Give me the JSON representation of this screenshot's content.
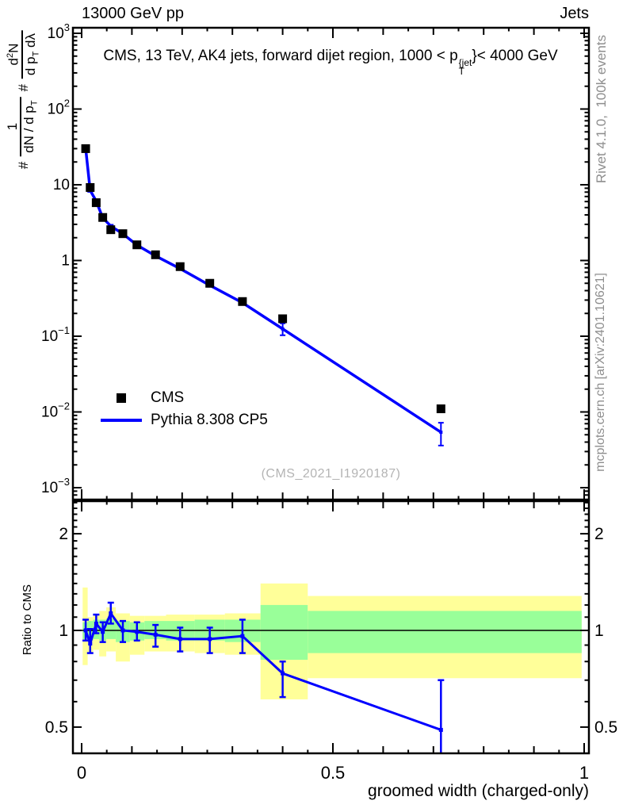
{
  "header": {
    "left": "13000 GeV pp",
    "right": "Jets"
  },
  "title": {
    "prefix": "CMS, 13 TeV, AK4 jets, forward dijet region, 1000 < p",
    "sup": "{jet",
    "sub": "T",
    "suffix": "}< 4000 GeV"
  },
  "ylabel": {
    "hash1": "#",
    "frac1_num": "1",
    "frac1_den": "dN / d p",
    "frac1_den_sub": "T",
    "hash2": "#",
    "frac2_num_d": "d",
    "frac2_num_sup": "2",
    "frac2_num_N": "N",
    "frac2_den": "d p",
    "frac2_den_sub": "T",
    "frac2_den_post": " dλ"
  },
  "legend": {
    "items": [
      {
        "label": "CMS"
      },
      {
        "label": "Pythia 8.308 CP5"
      }
    ]
  },
  "watermark": "(CMS_2021_I1920187)",
  "side_notes": {
    "top": "Rivet 4.1.0,  100k events",
    "bottom": "mcplots.cern.ch [arXiv:2401.10621]"
  },
  "ratio_label": "Ratio to CMS",
  "xlabel": "groomed width (charged-only)",
  "colors": {
    "mc_line": "#0000ff",
    "data_marker": "#000000",
    "band_outer": "#ffff99",
    "band_inner": "#99ff99",
    "note_gray": "#8e8e8e",
    "watermark_gray": "#b4b4b4",
    "frame": "#000000"
  },
  "chart_data": [
    {
      "type": "line",
      "title": "CMS, 13 TeV, AK4 jets, forward dijet region, 1000 < pT^{jet} < 4000 GeV",
      "xlabel": "groomed width (charged-only)",
      "ylabel": "# 1/(dN/dpT) d^2N/(dpT dlambda)",
      "yscale": "log",
      "xlim": [
        -0.017,
        1.0
      ],
      "ylim": [
        0.0007,
        1170
      ],
      "xticks": [
        0,
        0.5,
        1
      ],
      "xtick_labels": [
        "0",
        "0.5",
        "1"
      ],
      "yticks": [
        0.001,
        0.01,
        0.1,
        1,
        10,
        100,
        1000
      ],
      "legend_position": "center-left",
      "grid": false,
      "x": [
        0.008,
        0.017,
        0.029,
        0.042,
        0.058,
        0.082,
        0.11,
        0.147,
        0.196,
        0.255,
        0.32,
        0.4,
        0.715
      ],
      "series": [
        {
          "name": "CMS",
          "style": "squares",
          "color": "#000000",
          "values": [
            30,
            9.2,
            5.8,
            3.7,
            2.55,
            2.26,
            1.61,
            1.19,
            0.83,
            0.5,
            0.287,
            0.17,
            0.011
          ]
        },
        {
          "name": "Pythia 8.308 CP5",
          "style": "line",
          "color": "#0000ff",
          "values": [
            30.3,
            8.4,
            6.1,
            3.65,
            2.85,
            2.25,
            1.6,
            1.15,
            0.78,
            0.47,
            0.277,
            0.125,
            0.0054
          ],
          "err_lo": [
            29.1,
            8.06,
            5.86,
            3.5,
            2.74,
            2.16,
            1.54,
            1.1,
            0.75,
            0.45,
            0.266,
            0.103,
            0.0036
          ],
          "err_hi": [
            31.5,
            8.74,
            6.34,
            3.8,
            2.96,
            2.34,
            1.66,
            1.2,
            0.81,
            0.49,
            0.288,
            0.148,
            0.0072
          ]
        }
      ]
    },
    {
      "type": "ratio",
      "ylabel": "Ratio to CMS",
      "yscale": "log",
      "ylim": [
        0.414,
        2.53
      ],
      "yticks": [
        0.5,
        1,
        2
      ],
      "ytick_labels": [
        "0.5",
        "1",
        "2"
      ],
      "reference": 1,
      "x": [
        0.008,
        0.017,
        0.029,
        0.042,
        0.058,
        0.082,
        0.11,
        0.147,
        0.196,
        0.255,
        0.32,
        0.4,
        0.715
      ],
      "ratio": [
        1.0,
        0.91,
        1.05,
        0.99,
        1.13,
        1.0,
        0.99,
        0.97,
        0.94,
        0.94,
        0.96,
        0.735,
        0.49
      ],
      "err_lo": [
        0.93,
        0.85,
        0.98,
        0.92,
        1.05,
        0.92,
        0.93,
        0.89,
        0.86,
        0.85,
        0.85,
        0.62,
        0.4
      ],
      "err_hi": [
        1.08,
        1.01,
        1.12,
        1.06,
        1.22,
        1.07,
        1.06,
        1.04,
        1.02,
        1.02,
        1.08,
        0.8,
        0.7
      ],
      "bands": {
        "edges": [
          0.002,
          0.012,
          0.023,
          0.035,
          0.049,
          0.068,
          0.096,
          0.125,
          0.168,
          0.225,
          0.285,
          0.356,
          0.45,
          0.995
        ],
        "outer_lo": [
          0.78,
          0.85,
          0.87,
          0.83,
          0.86,
          0.8,
          0.84,
          0.86,
          0.86,
          0.85,
          0.84,
          0.61,
          0.71
        ],
        "outer_hi": [
          1.36,
          1.1,
          1.12,
          1.15,
          1.18,
          1.13,
          1.11,
          1.11,
          1.12,
          1.12,
          1.13,
          1.4,
          1.28
        ],
        "inner_lo": [
          0.94,
          0.93,
          0.94,
          0.93,
          0.94,
          0.92,
          0.93,
          0.94,
          0.93,
          0.93,
          0.92,
          0.81,
          0.85
        ],
        "inner_hi": [
          1.06,
          1.07,
          1.08,
          1.08,
          1.09,
          1.07,
          1.06,
          1.07,
          1.07,
          1.08,
          1.08,
          1.2,
          1.15
        ]
      }
    }
  ]
}
